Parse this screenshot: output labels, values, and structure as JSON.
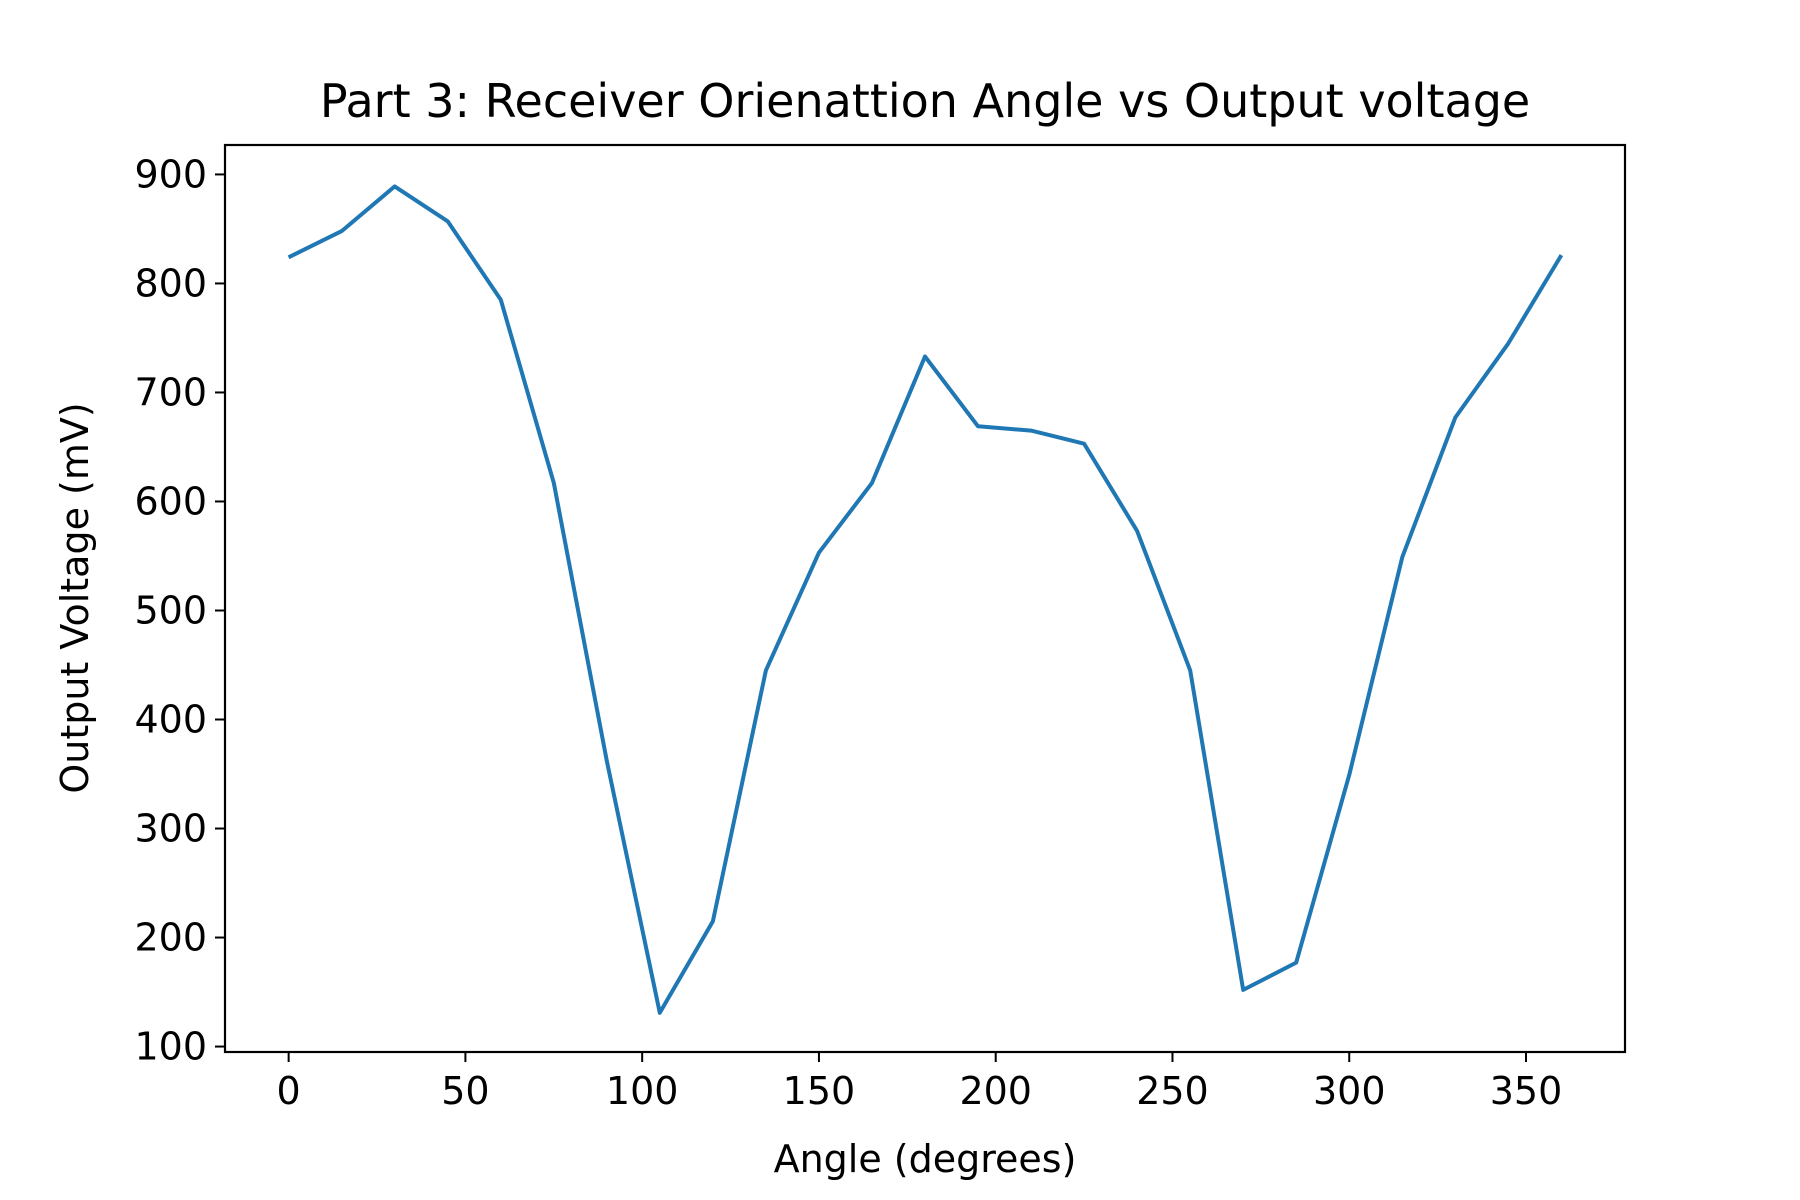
{
  "chart_data": {
    "type": "line",
    "title": "Part 3: Receiver Orienattion Angle vs Output voltage",
    "xlabel": "Angle (degrees)",
    "ylabel": "Output Voltage (mV)",
    "xlim": [
      -18,
      378
    ],
    "ylim": [
      95,
      927
    ],
    "xticks": [
      0,
      50,
      100,
      150,
      200,
      250,
      300,
      350
    ],
    "yticks": [
      100,
      200,
      300,
      400,
      500,
      600,
      700,
      800,
      900
    ],
    "grid": false,
    "legend": "none",
    "x": [
      0,
      15,
      30,
      45,
      60,
      75,
      90,
      105,
      120,
      135,
      150,
      165,
      180,
      195,
      210,
      225,
      240,
      255,
      270,
      285,
      300,
      315,
      330,
      345,
      360
    ],
    "series": [
      {
        "color": "#1f77b4",
        "values": [
          824,
          848,
          889,
          857,
          785,
          617,
          362,
          131,
          215,
          445,
          553,
          617,
          733,
          669,
          665,
          653,
          573,
          445,
          152,
          177,
          349,
          549,
          677,
          745,
          826
        ]
      }
    ]
  }
}
